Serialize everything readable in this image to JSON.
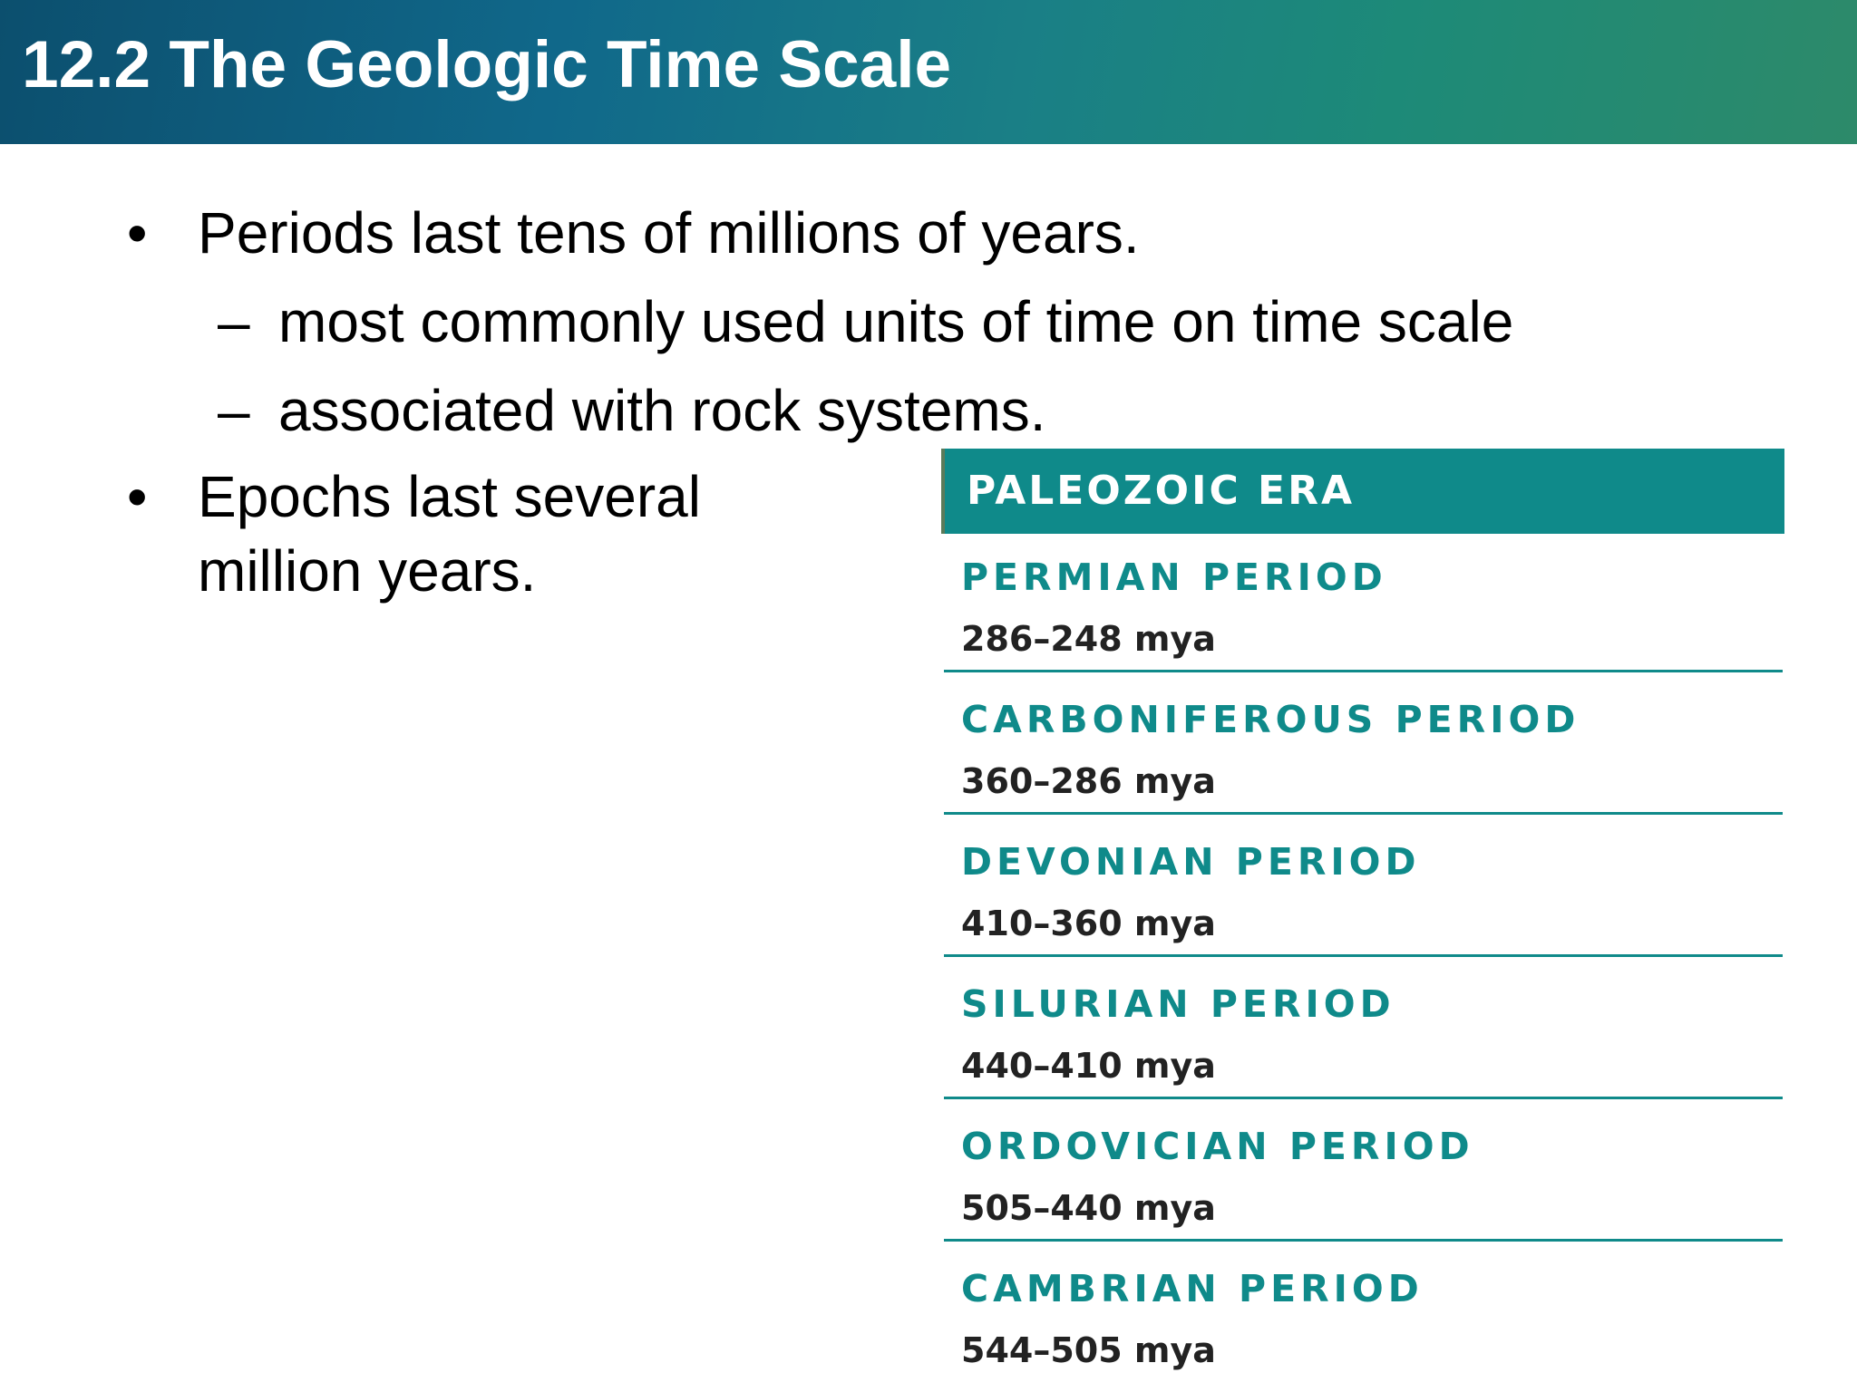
{
  "header": {
    "title": "12.2 The Geologic Time Scale"
  },
  "bullets": [
    {
      "text": "Periods last tens of millions of years.",
      "subitems": [
        "most commonly used units of time on time scale",
        "associated with rock systems."
      ]
    },
    {
      "text": "Epochs last several million years.",
      "subitems": []
    }
  ],
  "table": {
    "header": "PALEOZOIC ERA",
    "rows": [
      {
        "name": "PERMIAN PERIOD",
        "range": "286–248 mya"
      },
      {
        "name": "CARBONIFEROUS PERIOD",
        "range": "360–286 mya"
      },
      {
        "name": "DEVONIAN PERIOD",
        "range": "410–360 mya"
      },
      {
        "name": "SILURIAN PERIOD",
        "range": "440–410 mya"
      },
      {
        "name": "ORDOVICIAN PERIOD",
        "range": "505–440 mya"
      },
      {
        "name": "CAMBRIAN PERIOD",
        "range": "544–505 mya"
      }
    ]
  }
}
